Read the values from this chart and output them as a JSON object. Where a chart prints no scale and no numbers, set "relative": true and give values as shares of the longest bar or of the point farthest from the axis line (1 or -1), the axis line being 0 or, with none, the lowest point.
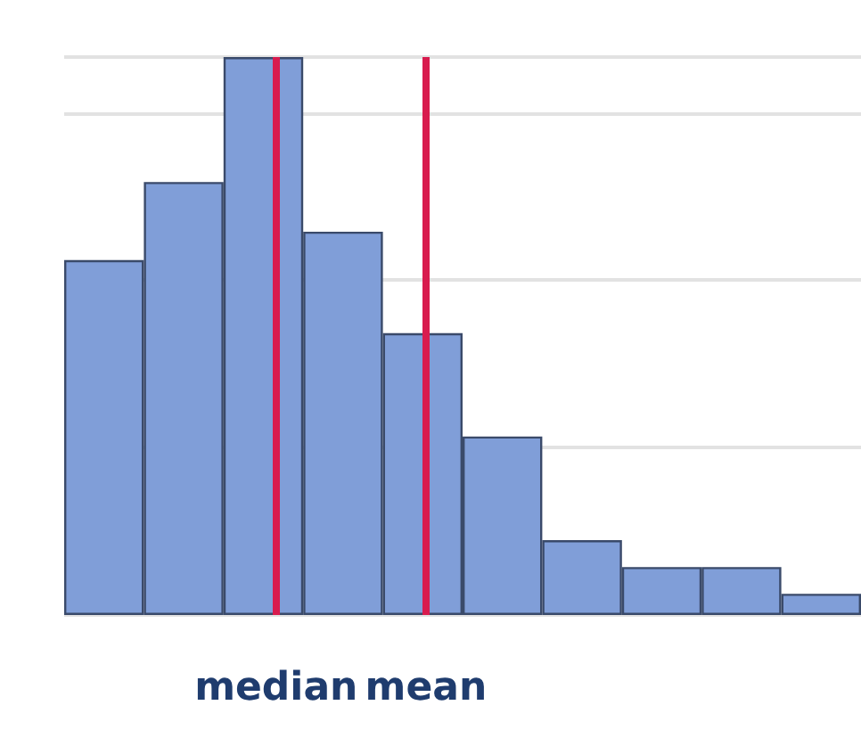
{
  "chart_data": {
    "type": "bar",
    "relative": true,
    "categories": [
      null,
      null,
      null,
      null,
      null,
      null,
      null,
      null,
      null,
      null
    ],
    "values": [
      0.636,
      0.776,
      1,
      0.687,
      0.505,
      0.32,
      0.134,
      0.086,
      0.086,
      0.038
    ],
    "color": "#809ed8",
    "grid": "y",
    "ref_lines": [
      {
        "axis": "x",
        "label": "median",
        "color": "#d81b4e"
      },
      {
        "axis": "x",
        "label": "mean",
        "color": "#d81b4e"
      }
    ]
  }
}
